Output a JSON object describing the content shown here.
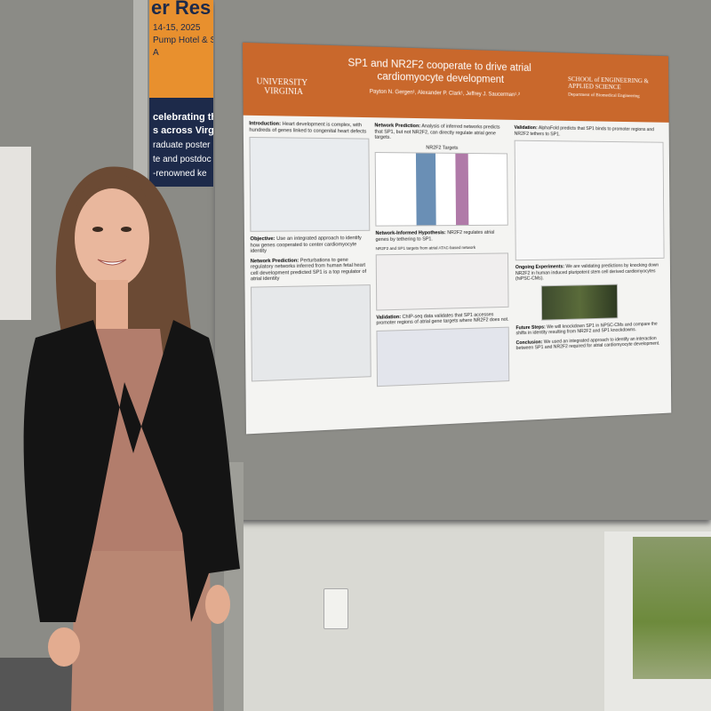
{
  "banner": {
    "line1": "er Res",
    "dates": "14-15, 2025",
    "venue": "Pump Hotel & S",
    "state": "A",
    "celebrating": "celebrating th",
    "across": "s across Virgi",
    "graduate": "raduate poster",
    "postdoc": "te and postdoc",
    "renowned": "-renowned ke"
  },
  "poster": {
    "title": "SP1 and NR2F2 cooperate to drive atrial cardiomyocyte development",
    "university": "UNIVERSITY",
    "virginia": "VIRGINIA",
    "school": "SCHOOL of ENGINEERING & APPLIED SCIENCE",
    "department": "Department of Biomedical Engineering",
    "authors": "Payton N. Gergen¹, Alexander P. Clark¹, Jeffrey J. Saucerman¹˒²",
    "intro": {
      "heading": "Introduction:",
      "text": "Heart development is complex, with hundreds of genes linked to congenital heart defects"
    },
    "objective": {
      "heading": "Objective:",
      "text": "Use an integrated approach to identify how genes cooperated to center cardiomyocyte identity"
    },
    "network_prediction": {
      "heading": "Network Prediction:",
      "text": "Perturbations to gene regulatory networks inferred from human fetal heart cell development predicted SP1 is a top regulator of atrial identity"
    },
    "network_prediction2": {
      "heading": "Network Prediction:",
      "text": "Analysis of inferred networks predicts that SP1, but not NR2F2, can directly regulate atrial gene targets.",
      "chart_title": "NR2F2 Targets"
    },
    "hypothesis": {
      "heading": "Network-Informed Hypothesis:",
      "text": "NR2F2 regulates atrial genes by tethering to SP1.",
      "caption": "NR2F2 and SP1 targets from atrial ATAC-based network"
    },
    "chip": {
      "heading": "Validation:",
      "text": "ChIP-seq data validates that SP1 accesses promoter regions of atrial gene targets where NR2F2 does not."
    },
    "alphafold": {
      "heading": "Validation:",
      "text": "AlphaFold predicts that SP1 binds to promoter regions and NR2F2 tethers to SP1."
    },
    "ongoing": {
      "heading": "Ongoing Experiments:",
      "text": "We are validating predictions by knocking down NR2F2 in human induced pluripotent stem cell derived cardiomyocytes (hiPSC-CMs)."
    },
    "future": {
      "heading": "Future Steps:",
      "text": "We will knockdown SP1 in hiPSC-CMs and compare the shifts in identity resulting from NR2F2 and SP1 knockdowns."
    },
    "conclusion": {
      "heading": "Conclusion:",
      "text": "We used an integrated approach to identify an interaction between SP1 and NR2F2 required for atrial cardiomyocyte development."
    }
  }
}
